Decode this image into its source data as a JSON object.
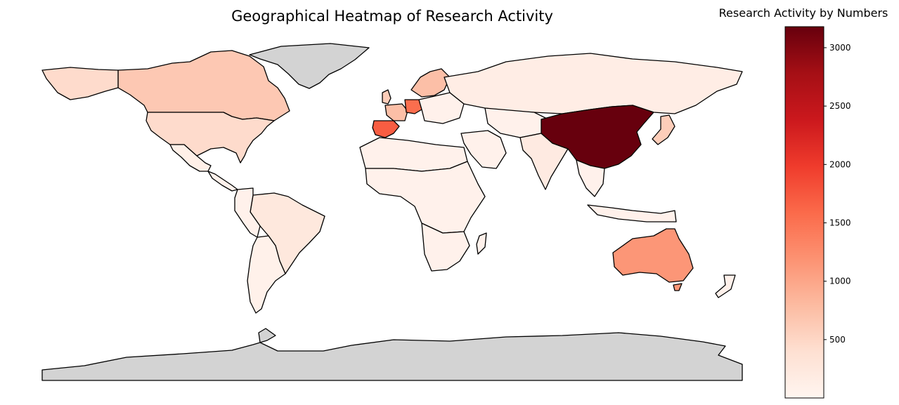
{
  "title": "Geographical Heatmap of Research Activity",
  "colorbar": {
    "label": "Research Activity by Numbers",
    "min": 0,
    "max": 3180,
    "ticks": [
      "500",
      "1000",
      "1500",
      "2000",
      "2500",
      "3000"
    ],
    "colormap": "Reds",
    "color_low": "#fff5f0",
    "color_high": "#67000d"
  },
  "no_data_color": "#d3d3d3",
  "chart_data": {
    "type": "heatmap",
    "title": "Geographical Heatmap of Research Activity",
    "value_label": "Research Activity by Numbers",
    "range": [
      0,
      3180
    ],
    "regions": [
      {
        "id": "china",
        "value": 3180
      },
      {
        "id": "spain",
        "value": 1700
      },
      {
        "id": "germany",
        "value": 1550
      },
      {
        "id": "australia",
        "value": 1150
      },
      {
        "id": "france",
        "value": 750
      },
      {
        "id": "canada",
        "value": 650
      },
      {
        "id": "scandinavia",
        "value": 750
      },
      {
        "id": "usa",
        "value": 450
      },
      {
        "id": "uk",
        "value": 600
      },
      {
        "id": "japan",
        "value": 600
      },
      {
        "id": "brazil",
        "value": 250
      },
      {
        "id": "russia",
        "value": 150
      },
      {
        "id": "india",
        "value": 200
      },
      {
        "id": "argentina",
        "value": 80
      },
      {
        "id": "mexico",
        "value": 100
      },
      {
        "id": "greenland",
        "value": null
      },
      {
        "id": "antarctica",
        "value": null
      }
    ]
  }
}
